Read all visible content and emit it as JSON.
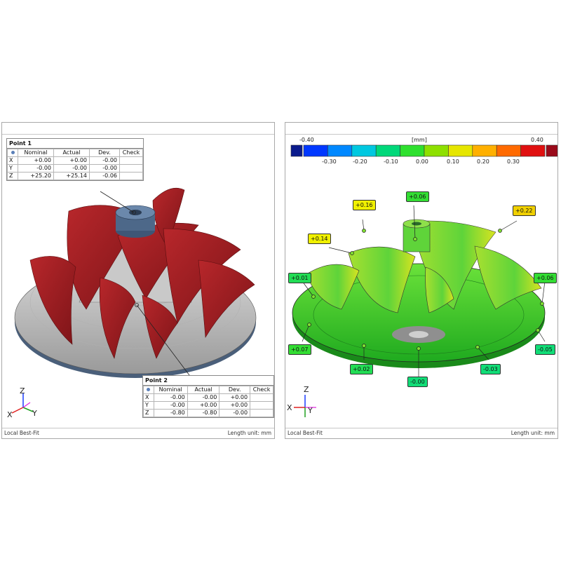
{
  "left_panel": {
    "status_left": "Local Best-Fit",
    "status_right": "Length unit: mm",
    "point1": {
      "title": "Point 1",
      "headers": [
        "Nominal",
        "Actual",
        "Dev.",
        "Check"
      ],
      "rows": [
        {
          "axis": "X",
          "nominal": "+0.00",
          "actual": "+0.00",
          "dev": "-0.00",
          "check": ""
        },
        {
          "axis": "Y",
          "nominal": "-0.00",
          "actual": "-0.00",
          "dev": "-0.00",
          "check": ""
        },
        {
          "axis": "Z",
          "nominal": "+25.20",
          "actual": "+25.14",
          "dev": "-0.06",
          "check": ""
        }
      ]
    },
    "point2": {
      "title": "Point 2",
      "headers": [
        "Nominal",
        "Actual",
        "Dev.",
        "Check"
      ],
      "rows": [
        {
          "axis": "X",
          "nominal": "-0.00",
          "actual": "-0.00",
          "dev": "+0.00",
          "check": ""
        },
        {
          "axis": "Y",
          "nominal": "-0.00",
          "actual": "+0.00",
          "dev": "+0.00",
          "check": ""
        },
        {
          "axis": "Z",
          "nominal": "-0.80",
          "actual": "-0.80",
          "dev": "-0.00",
          "check": ""
        }
      ]
    },
    "triad": {
      "z": "Z",
      "x": "X",
      "y": "Y"
    }
  },
  "right_panel": {
    "status_left": "Local Best-Fit",
    "status_right": "Length unit: mm",
    "colorbar": {
      "unit": "[mm]",
      "min_label": "-0.40",
      "max_label": "0.40",
      "ticks": [
        "-0.30",
        "-0.20",
        "-0.10",
        "0.00",
        "0.10",
        "0.20",
        "0.30"
      ],
      "colors": [
        "#0a1a8c",
        "#0038ff",
        "#0088ff",
        "#00c8e0",
        "#00d87a",
        "#2ee02e",
        "#8ee000",
        "#e6e600",
        "#ffb000",
        "#ff6a00",
        "#e01010",
        "#9a0a1a"
      ]
    },
    "callouts": [
      {
        "value": "+0.06",
        "color": "#33dd33"
      },
      {
        "value": "+0.16",
        "color": "#f0f000"
      },
      {
        "value": "+0.22",
        "color": "#f0d000"
      },
      {
        "value": "+0.14",
        "color": "#f0f000"
      },
      {
        "value": "+0.01",
        "color": "#22dd55"
      },
      {
        "value": "+0.06",
        "color": "#33dd33"
      },
      {
        "value": "+0.07",
        "color": "#33dd33"
      },
      {
        "value": "+0.02",
        "color": "#22dd55"
      },
      {
        "value": "-0.00",
        "color": "#11dd77"
      },
      {
        "value": "-0.03",
        "color": "#11dd77"
      },
      {
        "value": "-0.05",
        "color": "#11dd77"
      }
    ],
    "triad": {
      "z": "Z",
      "x": "X",
      "y": "Y"
    }
  }
}
